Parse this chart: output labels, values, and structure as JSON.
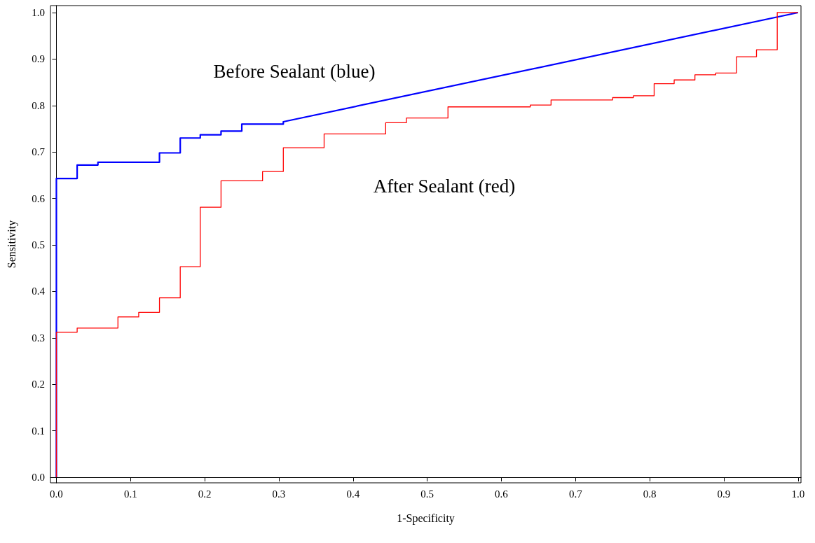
{
  "chart_data": {
    "type": "line",
    "xlabel": "1-Specificity",
    "ylabel": "Sensitivity",
    "xlim": [
      -0.008,
      1.004
    ],
    "ylim": [
      -0.012,
      1.015
    ],
    "xticks": [
      {
        "value": 0,
        "label": "0.0"
      },
      {
        "value": 0.1,
        "label": "0.1"
      },
      {
        "value": 0.2,
        "label": "0.2"
      },
      {
        "value": 0.3,
        "label": "0.3"
      },
      {
        "value": 0.4,
        "label": "0.4"
      },
      {
        "value": 0.5,
        "label": "0.5"
      },
      {
        "value": 0.6,
        "label": "0.6"
      },
      {
        "value": 0.7,
        "label": "0.7"
      },
      {
        "value": 0.8,
        "label": "0.8"
      },
      {
        "value": 0.9,
        "label": "0.9"
      },
      {
        "value": 1,
        "label": "1.0"
      }
    ],
    "yticks": [
      {
        "value": 0,
        "label": "0.0"
      },
      {
        "value": 0.1,
        "label": "0.1"
      },
      {
        "value": 0.2,
        "label": "0.2"
      },
      {
        "value": 0.3,
        "label": "0.3"
      },
      {
        "value": 0.4,
        "label": "0.4"
      },
      {
        "value": 0.5,
        "label": "0.5"
      },
      {
        "value": 0.6,
        "label": "0.6"
      },
      {
        "value": 0.7,
        "label": "0.7"
      },
      {
        "value": 0.8,
        "label": "0.8"
      },
      {
        "value": 0.9,
        "label": "0.9"
      },
      {
        "value": 1,
        "label": "1.0"
      }
    ],
    "marker": "none",
    "series": [
      {
        "color": "#0000ff",
        "x": [
          0,
          0,
          0.028,
          0.028,
          0.056,
          0.056,
          0.139,
          0.139,
          0.167,
          0.167,
          0.194,
          0.194,
          0.222,
          0.222,
          0.25,
          0.25,
          0.306,
          0.306,
          1
        ],
        "values": [
          0,
          0.643,
          0.643,
          0.672,
          0.672,
          0.678,
          0.678,
          0.698,
          0.698,
          0.73,
          0.73,
          0.737,
          0.737,
          0.745,
          0.745,
          0.76,
          0.76,
          0.765,
          1
        ]
      },
      {
        "color": "#ff0000",
        "x": [
          0,
          0,
          0.028,
          0.028,
          0.083,
          0.083,
          0.111,
          0.111,
          0.139,
          0.139,
          0.167,
          0.167,
          0.194,
          0.194,
          0.222,
          0.222,
          0.278,
          0.278,
          0.306,
          0.306,
          0.361,
          0.361,
          0.444,
          0.444,
          0.472,
          0.472,
          0.528,
          0.528,
          0.639,
          0.639,
          0.667,
          0.667,
          0.75,
          0.75,
          0.778,
          0.778,
          0.806,
          0.806,
          0.833,
          0.833,
          0.861,
          0.861,
          0.889,
          0.889,
          0.917,
          0.917,
          0.944,
          0.944,
          0.972,
          0.972,
          1
        ],
        "values": [
          0,
          0.312,
          0.312,
          0.321,
          0.321,
          0.345,
          0.345,
          0.355,
          0.355,
          0.386,
          0.386,
          0.453,
          0.453,
          0.581,
          0.581,
          0.638,
          0.638,
          0.658,
          0.658,
          0.709,
          0.709,
          0.739,
          0.739,
          0.763,
          0.763,
          0.773,
          0.773,
          0.797,
          0.797,
          0.801,
          0.801,
          0.812,
          0.812,
          0.817,
          0.817,
          0.821,
          0.821,
          0.847,
          0.847,
          0.855,
          0.855,
          0.866,
          0.866,
          0.87,
          0.87,
          0.905,
          0.905,
          0.92,
          0.92,
          1,
          1
        ]
      }
    ],
    "annotations": [
      "Before Sealant (blue)",
      "After Sealant (red)"
    ]
  }
}
